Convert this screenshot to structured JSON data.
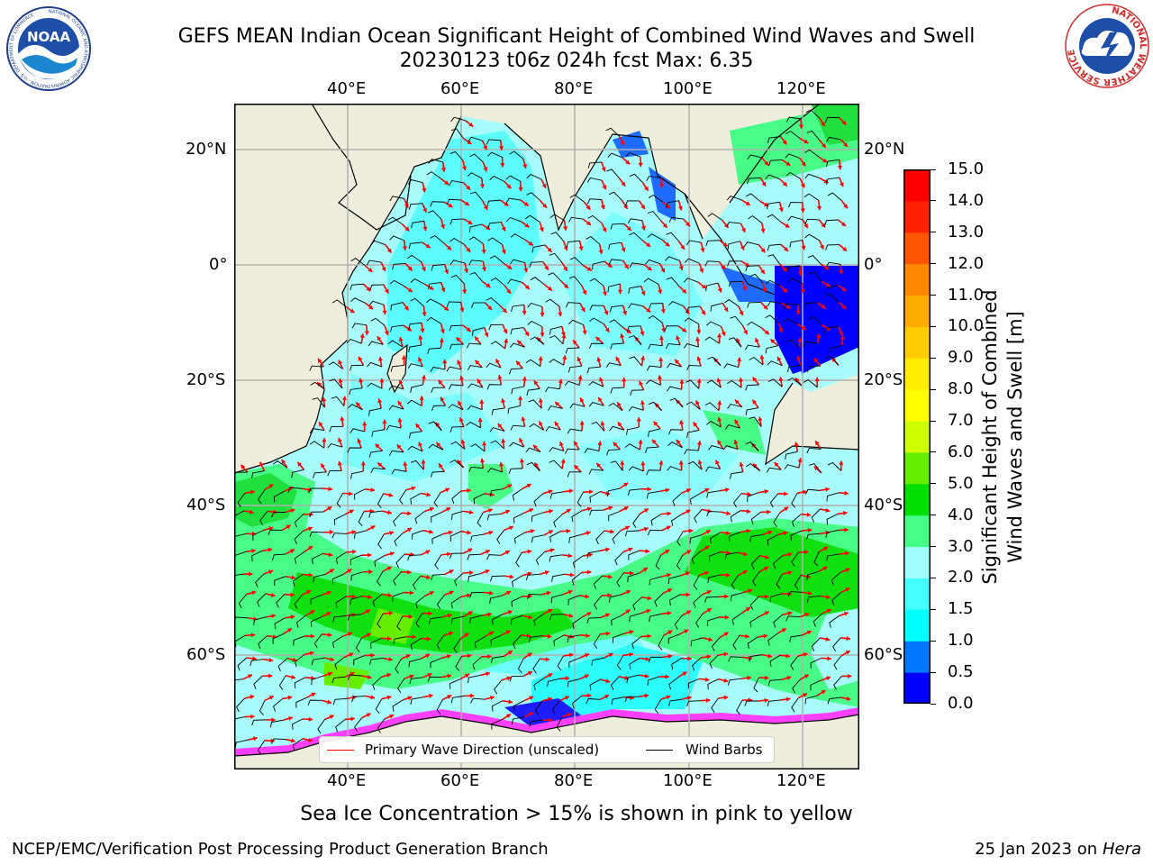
{
  "header": {
    "title_line1": "GEFS MEAN Indian Ocean Significant Height of Combined Wind Waves and Swell",
    "title_line2": "20230123 t06z 024h fcst   Max: 6.35"
  },
  "logos": {
    "noaa_text": "NOAA",
    "noaa_ring": "NATIONAL OCEANIC AND ATMOSPHERIC ADMINISTRATION · U.S. DEPARTMENT OF COMMERCE",
    "nws_ring": "NATIONAL WEATHER SERVICE"
  },
  "map": {
    "top_lon_ticks": [
      "40°E",
      "60°E",
      "80°E",
      "100°E",
      "120°E"
    ],
    "bottom_lon_ticks": [
      "40°E",
      "60°E",
      "80°E",
      "100°E",
      "120°E"
    ],
    "left_lat_ticks": [
      "20°N",
      "0°",
      "20°S",
      "40°S",
      "60°S"
    ],
    "right_lat_ticks": [
      "20°N",
      "0°",
      "20°S",
      "40°S",
      "60°S"
    ],
    "colors": {
      "land": "#efeedc",
      "grid": "#b0b0b0",
      "arrow": "#ff0000",
      "barb": "#000000",
      "ice": "#ff40ff"
    }
  },
  "colorbar": {
    "tick_labels": [
      "0.0",
      "0.5",
      "1.0",
      "1.5",
      "2.0",
      "3.0",
      "4.0",
      "5.0",
      "6.0",
      "7.0",
      "8.0",
      "9.0",
      "10.0",
      "11.0",
      "12.0",
      "13.0",
      "14.0",
      "15.0"
    ],
    "colors": [
      "#0000ff",
      "#0077ff",
      "#00ffff",
      "#44ffff",
      "#a0ffff",
      "#44ff88",
      "#00e000",
      "#66ee00",
      "#ccff00",
      "#ffff00",
      "#ffee00",
      "#ffcc00",
      "#ffaa00",
      "#ff8800",
      "#ff5500",
      "#ff2200",
      "#ff0000"
    ],
    "label_line1": "Significant Height of Combined",
    "label_line2": "Wind Waves and Swell [m]"
  },
  "legend": {
    "arrow_label": "Primary Wave Direction (unscaled)",
    "barb_label": "Wind Barbs"
  },
  "footer": {
    "ice_note": "Sea Ice Concentration > 15% is shown in pink to yellow",
    "credit": "NCEP/EMC/Verification Post Processing Product Generation Branch",
    "date_prefix": "25 Jan 2023 on ",
    "machine": "Hera"
  }
}
